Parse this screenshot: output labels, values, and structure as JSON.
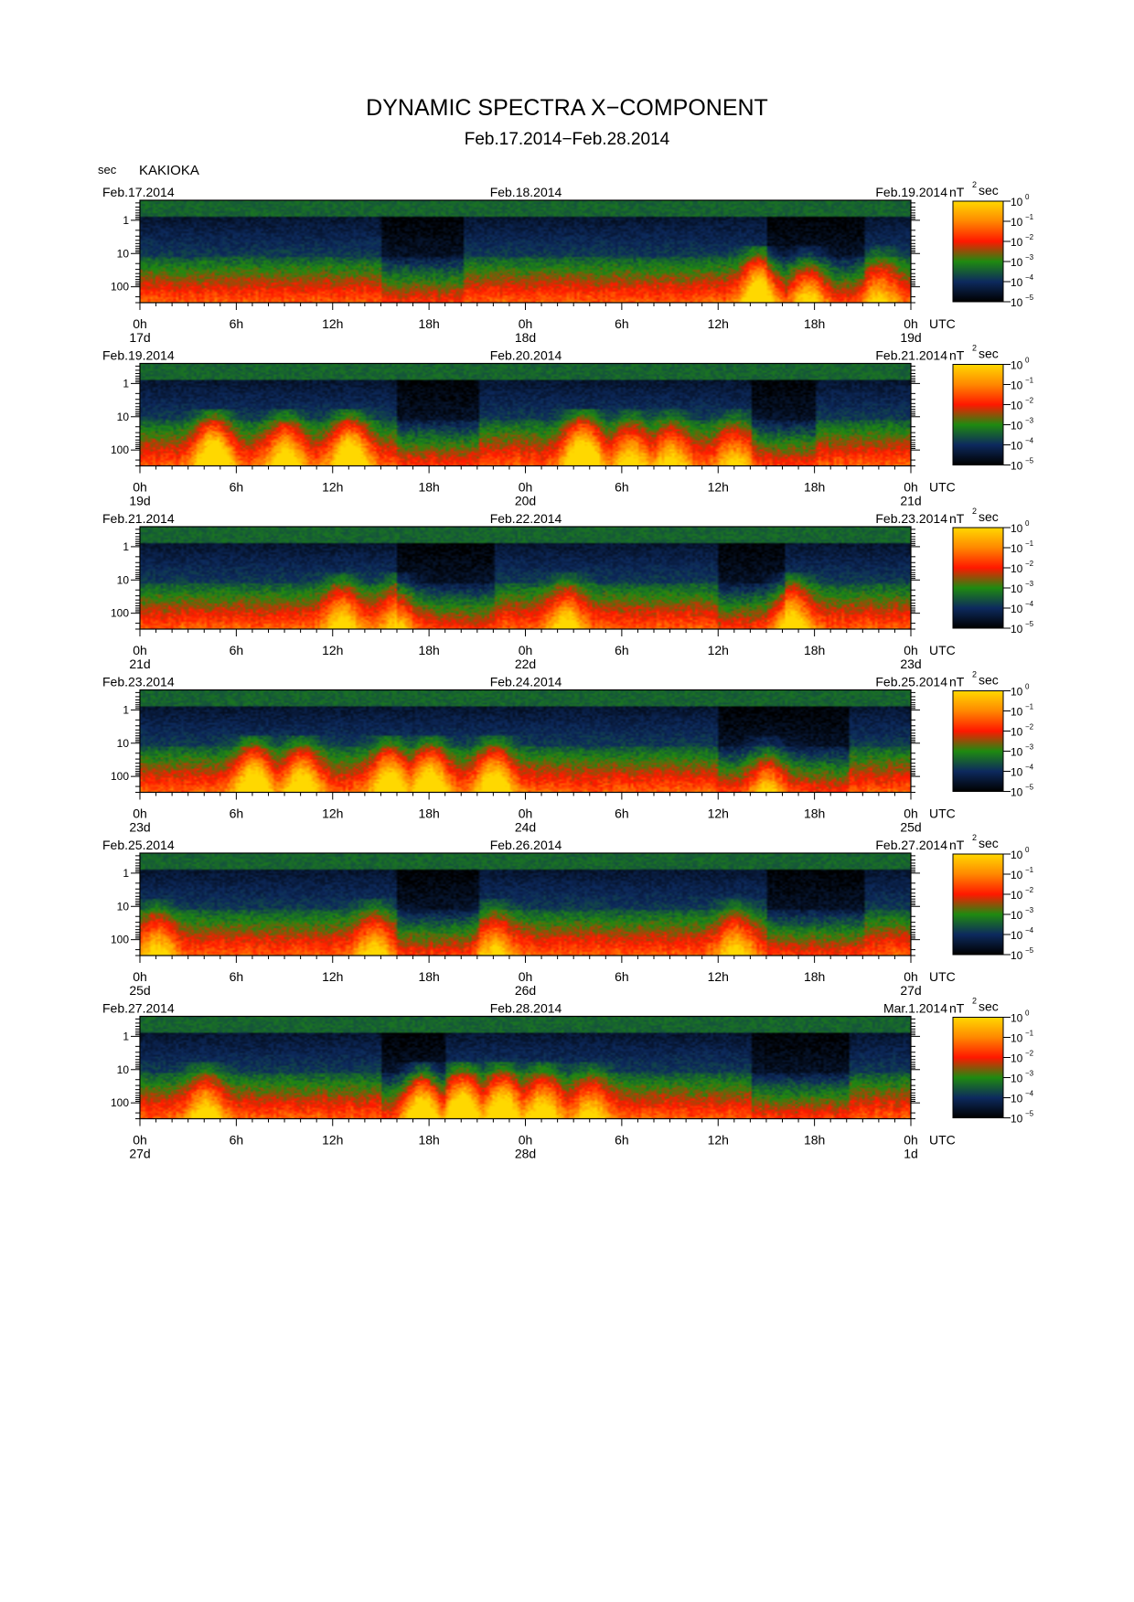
{
  "header": {
    "title": "DYNAMIC SPECTRA X−COMPONENT",
    "subtitle": "Feb.17.2014−Feb.28.2014",
    "y_unit": "sec",
    "station": "KAKIOKA"
  },
  "chart_data": {
    "type": "heatmap",
    "component": "X",
    "axis": {
      "ylabel": "sec",
      "y_ticks": [
        "1",
        "10",
        "100"
      ],
      "y_scale": "log",
      "x_ticks": [
        "0h",
        "6h",
        "12h",
        "18h",
        "0h",
        "6h",
        "12h",
        "18h",
        "0h"
      ],
      "x_unit": "UTC",
      "hours_per_panel": 48
    },
    "colorbar": {
      "label": "nT²sec",
      "unit_base": "nT",
      "unit_exp": "2",
      "unit_suffix": "sec",
      "scale": "log",
      "ticks": [
        {
          "base": "10",
          "exp": "0"
        },
        {
          "base": "10",
          "exp": "−1"
        },
        {
          "base": "10",
          "exp": "−2"
        },
        {
          "base": "10",
          "exp": "−3"
        },
        {
          "base": "10",
          "exp": "−4"
        },
        {
          "base": "10",
          "exp": "−5"
        }
      ],
      "colors": [
        "#ffd800",
        "#ff8800",
        "#ff1800",
        "#1f8a10",
        "#0d2a5e",
        "#000000"
      ]
    },
    "panels": [
      {
        "date_left": "Feb.17.2014",
        "date_mid": "Feb.18.2014",
        "date_right": "Feb.19.2014",
        "days": [
          "17d",
          "18d",
          "19d"
        ],
        "quiet_hours": [
          [
            15,
            20
          ],
          [
            39,
            45
          ]
        ],
        "events": [
          {
            "hour": 38.5,
            "intensity": 0.85
          },
          {
            "hour": 41.5,
            "intensity": 0.6
          },
          {
            "hour": 46.0,
            "intensity": 0.4
          }
        ]
      },
      {
        "date_left": "Feb.19.2014",
        "date_mid": "Feb.20.2014",
        "date_right": "Feb.21.2014",
        "days": [
          "19d",
          "20d",
          "21d"
        ],
        "quiet_hours": [
          [
            16,
            21
          ],
          [
            38,
            42
          ]
        ],
        "events": [
          {
            "hour": 4.5,
            "intensity": 0.95
          },
          {
            "hour": 9.0,
            "intensity": 0.7
          },
          {
            "hour": 13.0,
            "intensity": 0.9
          },
          {
            "hour": 27.5,
            "intensity": 1.0
          },
          {
            "hour": 30.5,
            "intensity": 0.55
          },
          {
            "hour": 33.0,
            "intensity": 0.5
          },
          {
            "hour": 37.0,
            "intensity": 0.45
          }
        ]
      },
      {
        "date_left": "Feb.21.2014",
        "date_mid": "Feb.22.2014",
        "date_right": "Feb.23.2014",
        "days": [
          "21d",
          "22d",
          "23d"
        ],
        "quiet_hours": [
          [
            16,
            22
          ],
          [
            36,
            40
          ]
        ],
        "events": [
          {
            "hour": 12.5,
            "intensity": 0.6
          },
          {
            "hour": 16.0,
            "intensity": 0.5
          },
          {
            "hour": 26.5,
            "intensity": 0.55
          },
          {
            "hour": 40.5,
            "intensity": 0.7
          }
        ]
      },
      {
        "date_left": "Feb.23.2014",
        "date_mid": "Feb.24.2014",
        "date_right": "Feb.25.2014",
        "days": [
          "23d",
          "24d",
          "25d"
        ],
        "quiet_hours": [
          [
            36,
            44
          ]
        ],
        "events": [
          {
            "hour": 7.0,
            "intensity": 0.85
          },
          {
            "hour": 10.0,
            "intensity": 0.75
          },
          {
            "hour": 15.5,
            "intensity": 0.8
          },
          {
            "hour": 18.0,
            "intensity": 0.85
          },
          {
            "hour": 22.0,
            "intensity": 0.8
          },
          {
            "hour": 39.0,
            "intensity": 0.5
          }
        ]
      },
      {
        "date_left": "Feb.25.2014",
        "date_mid": "Feb.26.2014",
        "date_right": "Feb.27.2014",
        "days": [
          "25d",
          "26d",
          "27d"
        ],
        "quiet_hours": [
          [
            16,
            21
          ],
          [
            39,
            45
          ]
        ],
        "events": [
          {
            "hour": 1.0,
            "intensity": 0.5
          },
          {
            "hour": 14.5,
            "intensity": 0.5
          },
          {
            "hour": 22.0,
            "intensity": 0.45
          },
          {
            "hour": 37.0,
            "intensity": 0.5
          }
        ]
      },
      {
        "date_left": "Feb.27.2014",
        "date_mid": "Feb.28.2014",
        "date_right": "Mar.1.2014",
        "days": [
          "27d",
          "28d",
          "1d"
        ],
        "quiet_hours": [
          [
            15,
            19
          ],
          [
            38,
            44
          ]
        ],
        "events": [
          {
            "hour": 4.0,
            "intensity": 0.6
          },
          {
            "hour": 17.5,
            "intensity": 1.0
          },
          {
            "hour": 20.0,
            "intensity": 0.9
          },
          {
            "hour": 22.5,
            "intensity": 0.85
          },
          {
            "hour": 25.0,
            "intensity": 0.7
          },
          {
            "hour": 28.0,
            "intensity": 0.5
          }
        ]
      }
    ]
  }
}
